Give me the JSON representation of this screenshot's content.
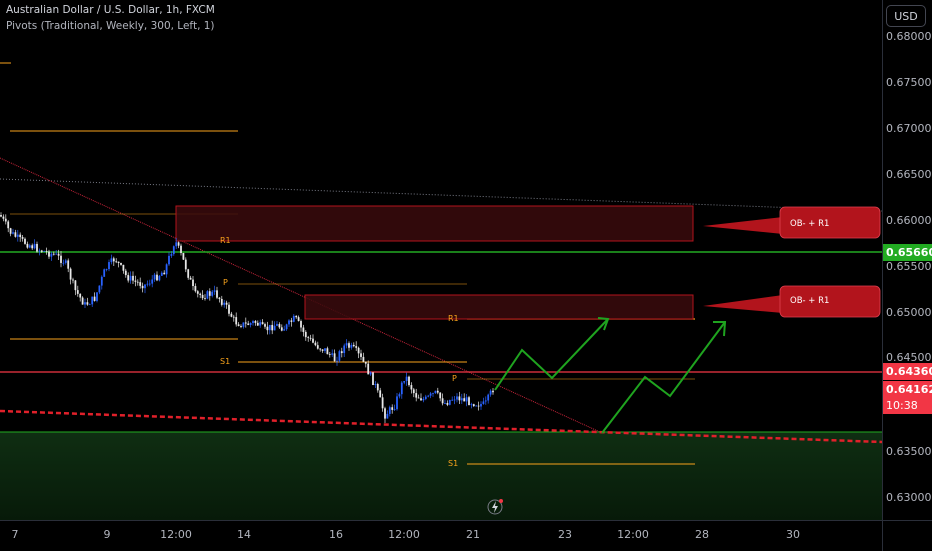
{
  "legend": {
    "symbol_line": "Australian Dollar / U.S. Dollar, 1h, FXCM",
    "indicator_line": "Pivots (Traditional, Weekly, 300, Left, 1)"
  },
  "currency_button": "USD",
  "price_axis": [
    "0.68000",
    "0.67500",
    "0.67000",
    "0.66500",
    "0.66000",
    "0.65500",
    "0.65000",
    "0.64500",
    "0.63500",
    "0.63000"
  ],
  "time_axis": [
    "7",
    "9",
    "12:00",
    "14",
    "16",
    "12:00",
    "21",
    "23",
    "12:00",
    "28",
    "30"
  ],
  "price_labels": {
    "green_line": "0.65660",
    "red_line": "0.64360",
    "last_price": "0.64162",
    "countdown": "10:38"
  },
  "pivot_labels": {
    "r1_a": "R1",
    "p_a": "P",
    "s1_a": "S1",
    "r1_b": "R1",
    "p_b": "P",
    "s1_b": "S1"
  },
  "callouts": {
    "upper": "OB- + R1",
    "lower": "OB- + R1"
  },
  "colors": {
    "background": "#000000",
    "green_line": "#22ab22",
    "red_line": "#f23645",
    "pivot": "#f7a21b",
    "candle_up": "#2962ff",
    "ob_box": "#b2141c",
    "arrow": "#1fa31f"
  },
  "icons": [
    "lightning-icon"
  ]
}
